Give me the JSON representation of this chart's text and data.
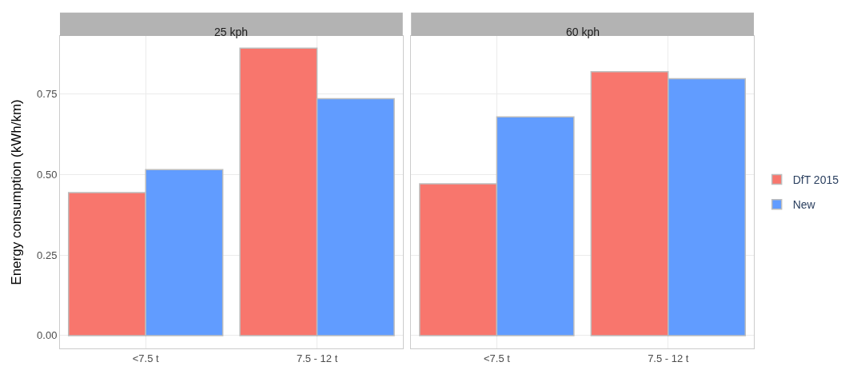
{
  "chart_data": [
    {
      "type": "bar",
      "title": "25 kph",
      "ylabel": "Energy consumption (kWh/km)",
      "categories": [
        "<7.5 t",
        "7.5 - 12 t"
      ],
      "series": [
        {
          "name": "DfT 2015",
          "color": "#f8766d",
          "values": [
            0.444,
            0.892
          ]
        },
        {
          "name": "New",
          "color": "#619cff",
          "values": [
            0.515,
            0.735
          ]
        }
      ],
      "ylim": [
        -0.04,
        0.93
      ],
      "yticks": [
        {
          "value": 0,
          "label": "0.00"
        },
        {
          "value": 0.25,
          "label": "0.25"
        },
        {
          "value": 0.5,
          "label": "0.50"
        },
        {
          "value": 0.75,
          "label": "0.75"
        }
      ],
      "grid": true,
      "legend": "right"
    },
    {
      "type": "bar",
      "title": "60 kph",
      "categories": [
        "<7.5 t",
        "7.5 - 12 t"
      ],
      "series": [
        {
          "name": "DfT 2015",
          "color": "#f8766d",
          "values": [
            0.471,
            0.819
          ]
        },
        {
          "name": "New",
          "color": "#619cff",
          "values": [
            0.679,
            0.797
          ]
        }
      ],
      "ylim": [
        -0.04,
        0.93
      ],
      "yticks": [
        {
          "value": 0,
          "label": null
        },
        {
          "value": 0.25,
          "label": null
        },
        {
          "value": 0.5,
          "label": null
        },
        {
          "value": 0.75,
          "label": null
        }
      ],
      "tick_labels": "x",
      "grid": true,
      "legend": "right"
    }
  ]
}
